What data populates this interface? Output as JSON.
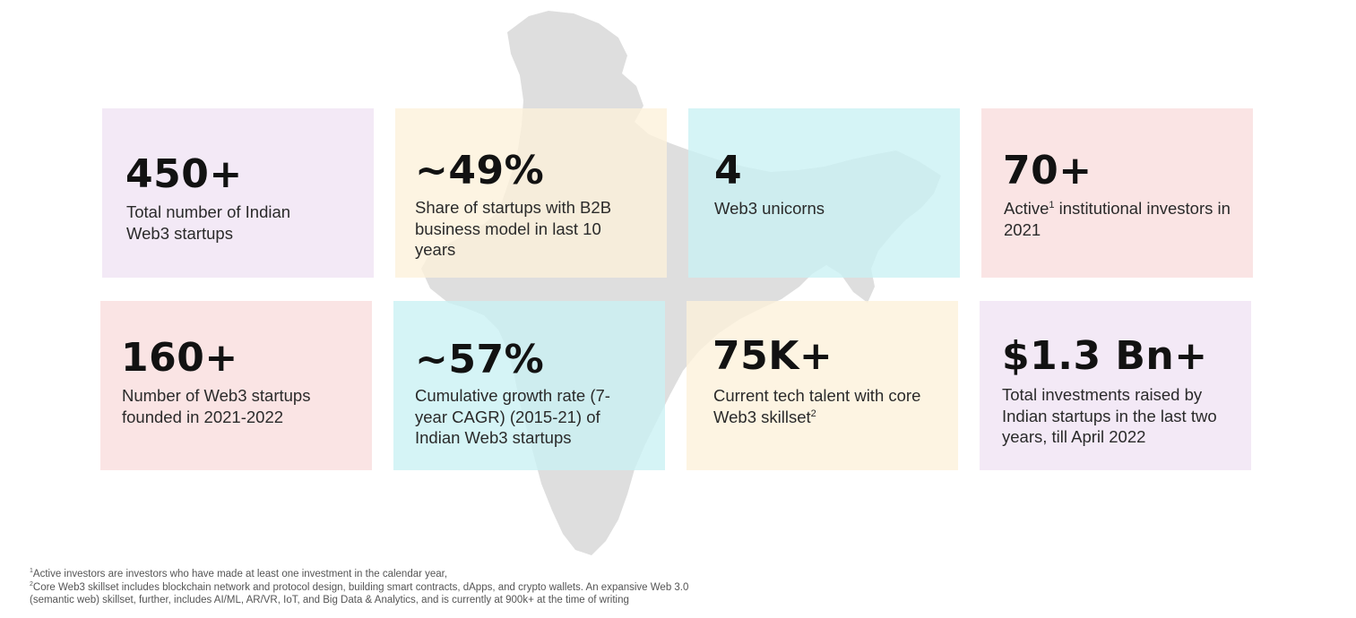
{
  "colors": {
    "lavender": "#f0e3f3",
    "cream": "#fcf1da",
    "aqua": "#c9f1f4",
    "pink": "#f9dcdc",
    "map": "#dedede"
  },
  "cards": [
    {
      "stat": "450+",
      "desc": "Total number of Indian Web3 startups",
      "color": "lavender"
    },
    {
      "stat": "~49%",
      "desc": "Share of startups with B2B business model in last 10 years",
      "color": "cream"
    },
    {
      "stat": "4",
      "desc": "Web3 unicorns",
      "color": "aqua"
    },
    {
      "stat": "70+",
      "desc_pre": "Active",
      "desc_sup": "1",
      "desc_post": " institutional investors in 2021",
      "color": "pink"
    },
    {
      "stat": "160+",
      "desc": "Number of Web3 startups founded in 2021-2022",
      "color": "pink"
    },
    {
      "stat": "~57%",
      "desc": "Cumulative growth rate (7-year CAGR) (2015-21) of Indian Web3 startups",
      "color": "aqua"
    },
    {
      "stat": "75K+",
      "desc_pre": "Current tech talent with core Web3 skillset",
      "desc_sup": "2",
      "color": "cream"
    },
    {
      "stat": "$1.3 Bn+",
      "desc": "Total investments raised by Indian startups in the last two years, till April 2022",
      "color": "lavender"
    }
  ],
  "footnotes": {
    "f1_mark": "1",
    "f1_text": "Active investors are investors who have made at least one investment in the calendar year,",
    "f2_mark": "2",
    "f2_line1": "Core Web3 skillset includes blockchain network and protocol design, building smart contracts, dApps, and crypto wallets. An expansive Web 3.0",
    "f2_line2": "(semantic web) skillset, further, includes AI/ML, AR/VR, IoT, and Big Data & Analytics, and is currently at 900k+ at the time of writing"
  }
}
